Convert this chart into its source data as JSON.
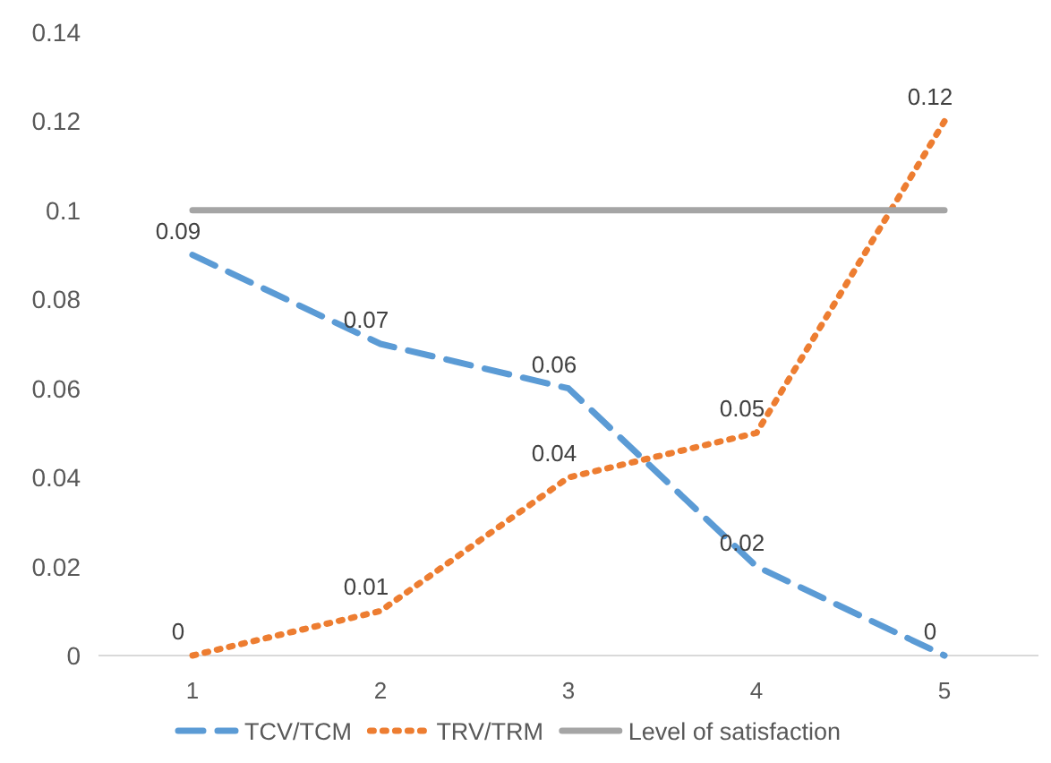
{
  "chart_data": {
    "type": "line",
    "categories": [
      "1",
      "2",
      "3",
      "4",
      "5"
    ],
    "series": [
      {
        "name": "TCV/TCM",
        "color": "#5b9bd5",
        "line_style": "dashed",
        "values": [
          0.09,
          0.07,
          0.06,
          0.02,
          0
        ],
        "value_labels": [
          "0.09",
          "0.07",
          "0.06",
          "0.02",
          "0"
        ]
      },
      {
        "name": "TRV/TRM",
        "color": "#ed7d31",
        "line_style": "dotted",
        "values": [
          0,
          0.01,
          0.04,
          0.05,
          0.12
        ],
        "value_labels": [
          "0",
          "0.01",
          "0.04",
          "0.05",
          "0.12"
        ]
      },
      {
        "name": "Level of satisfaction",
        "color": "#a5a5a5",
        "line_style": "solid",
        "values": [
          0.1,
          0.1,
          0.1,
          0.1,
          0.1
        ]
      }
    ],
    "ylim": [
      0,
      0.14
    ],
    "yticks": [
      0,
      0.02,
      0.04,
      0.06,
      0.08,
      0.1,
      0.12,
      0.14
    ],
    "grid": false,
    "legend": "bottom",
    "marker": "none"
  }
}
